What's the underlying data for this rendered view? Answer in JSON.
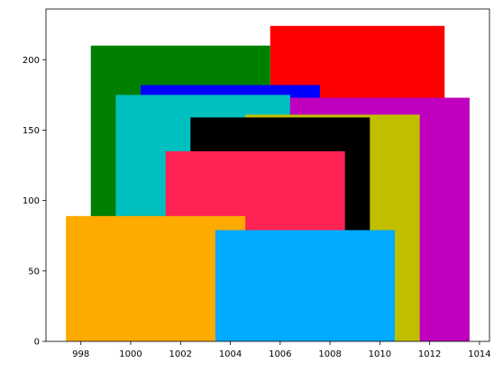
{
  "chart_data": {
    "type": "bar",
    "title": "",
    "xlabel": "",
    "ylabel": "",
    "xlim": [
      996.6,
      1014.4
    ],
    "ylim": [
      0,
      236
    ],
    "grid": false,
    "legend": "none",
    "xticks": [
      998,
      1000,
      1002,
      1004,
      1006,
      1008,
      1010,
      1012,
      1014
    ],
    "yticks": [
      0,
      50,
      100,
      150,
      200
    ],
    "bars": [
      {
        "x_start": 1005.6,
        "x_end": 1012.6,
        "value": 224,
        "color": "#ff0000"
      },
      {
        "x_start": 998.4,
        "x_end": 1005.6,
        "value": 210,
        "color": "#008000"
      },
      {
        "x_start": 1000.4,
        "x_end": 1007.6,
        "value": 182,
        "color": "#0000ff"
      },
      {
        "x_start": 999.4,
        "x_end": 1006.4,
        "value": 175,
        "color": "#00bfbf"
      },
      {
        "x_start": 1006.4,
        "x_end": 1013.6,
        "value": 173,
        "color": "#bf00bf"
      },
      {
        "x_start": 1004.6,
        "x_end": 1011.6,
        "value": 161,
        "color": "#bfbf00"
      },
      {
        "x_start": 1002.4,
        "x_end": 1009.6,
        "value": 159,
        "color": "#000000"
      },
      {
        "x_start": 1001.4,
        "x_end": 1008.6,
        "value": 135,
        "color": "#ff2255"
      },
      {
        "x_start": 997.4,
        "x_end": 1004.6,
        "value": 89,
        "color": "#ffaa00"
      },
      {
        "x_start": 1003.4,
        "x_end": 1010.6,
        "value": 79,
        "color": "#00aaff"
      }
    ]
  }
}
